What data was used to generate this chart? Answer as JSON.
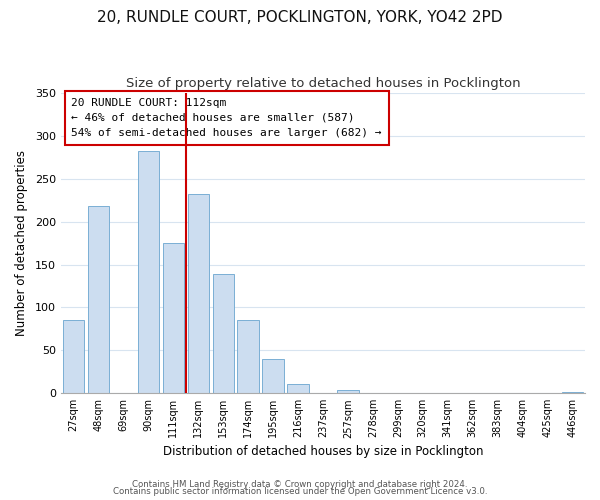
{
  "title": "20, RUNDLE COURT, POCKLINGTON, YORK, YO42 2PD",
  "subtitle": "Size of property relative to detached houses in Pocklington",
  "xlabel": "Distribution of detached houses by size in Pocklington",
  "ylabel": "Number of detached properties",
  "bar_color": "#ccddf0",
  "bar_edge_color": "#7aafd4",
  "categories": [
    "27sqm",
    "48sqm",
    "69sqm",
    "90sqm",
    "111sqm",
    "132sqm",
    "153sqm",
    "174sqm",
    "195sqm",
    "216sqm",
    "237sqm",
    "257sqm",
    "278sqm",
    "299sqm",
    "320sqm",
    "341sqm",
    "362sqm",
    "383sqm",
    "404sqm",
    "425sqm",
    "446sqm"
  ],
  "values": [
    85,
    218,
    0,
    282,
    175,
    232,
    139,
    85,
    40,
    11,
    0,
    4,
    0,
    0,
    0,
    0,
    0,
    0,
    0,
    0,
    1
  ],
  "ylim": [
    0,
    350
  ],
  "yticks": [
    0,
    50,
    100,
    150,
    200,
    250,
    300,
    350
  ],
  "annotation_box_text": [
    "20 RUNDLE COURT: 112sqm",
    "← 46% of detached houses are smaller (587)",
    "54% of semi-detached houses are larger (682) →"
  ],
  "annotation_box_color": "#ffffff",
  "annotation_box_edge_color": "#cc0000",
  "footer_line1": "Contains HM Land Registry data © Crown copyright and database right 2024.",
  "footer_line2": "Contains public sector information licensed under the Open Government Licence v3.0.",
  "background_color": "#ffffff",
  "grid_color": "#d8e4f0",
  "property_line_x": 4,
  "property_line_color": "#cc0000",
  "title_fontsize": 11,
  "subtitle_fontsize": 9.5
}
